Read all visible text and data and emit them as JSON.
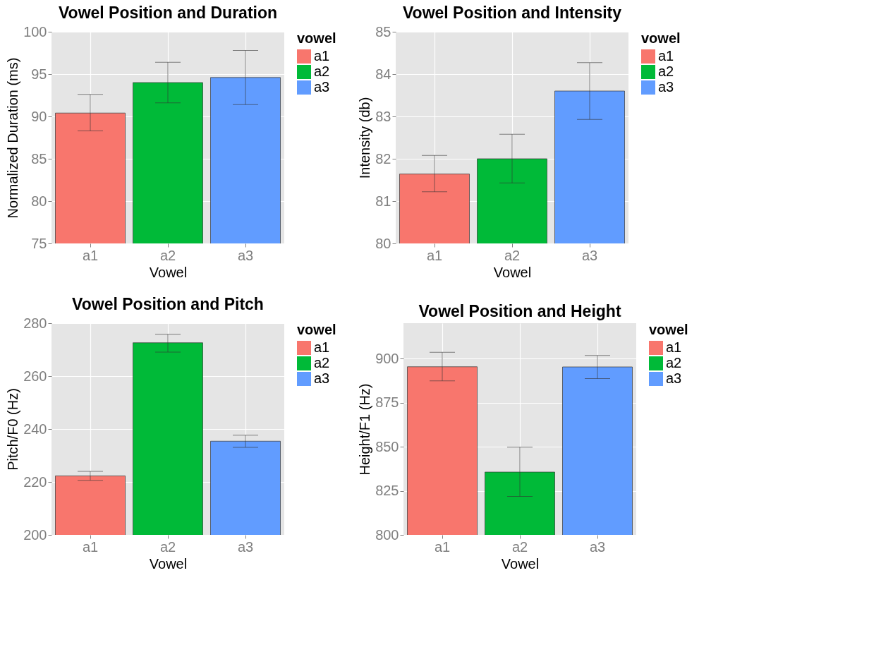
{
  "chart_data": [
    {
      "type": "bar",
      "title": "Vowel Position and Duration",
      "xlabel": "Vowel",
      "ylabel": "Normalized Duration (ms)",
      "categories": [
        "a1",
        "a2",
        "a3"
      ],
      "ylim": [
        75,
        100
      ],
      "yticks": [
        75,
        80,
        85,
        90,
        95,
        100
      ],
      "grid": true,
      "legend": "right",
      "legend_title": "vowel",
      "series": [
        {
          "name": "a1",
          "color": "#f8766d",
          "values": [
            90.4,
            null,
            null
          ],
          "errors": [
            [
              88.3,
              92.6
            ],
            null,
            null
          ]
        },
        {
          "name": "a2",
          "color": "#00ba38",
          "values": [
            null,
            94.0,
            null
          ],
          "errors": [
            null,
            [
              91.6,
              96.4
            ],
            null
          ]
        },
        {
          "name": "a3",
          "color": "#619cff",
          "values": [
            null,
            null,
            94.6
          ],
          "errors": [
            null,
            null,
            [
              91.4,
              97.8
            ]
          ]
        }
      ]
    },
    {
      "type": "bar",
      "title": "Vowel Position and Intensity",
      "xlabel": "Vowel",
      "ylabel": "Intensity (db)",
      "categories": [
        "a1",
        "a2",
        "a3"
      ],
      "ylim": [
        80,
        85
      ],
      "yticks": [
        80,
        81,
        82,
        83,
        84,
        85
      ],
      "grid": true,
      "legend": "right",
      "legend_title": "vowel",
      "series": [
        {
          "name": "a1",
          "color": "#f8766d",
          "values": [
            81.64,
            null,
            null
          ],
          "errors": [
            [
              81.22,
              82.08
            ],
            null,
            null
          ]
        },
        {
          "name": "a2",
          "color": "#00ba38",
          "values": [
            null,
            82.0,
            null
          ],
          "errors": [
            null,
            [
              81.43,
              82.58
            ],
            null
          ]
        },
        {
          "name": "a3",
          "color": "#619cff",
          "values": [
            null,
            null,
            83.6
          ],
          "errors": [
            null,
            null,
            [
              82.93,
              84.27
            ]
          ]
        }
      ]
    },
    {
      "type": "bar",
      "title": "Vowel Position and Pitch",
      "xlabel": "Vowel",
      "ylabel": "Pitch/F0 (Hz)",
      "categories": [
        "a1",
        "a2",
        "a3"
      ],
      "ylim": [
        200,
        280
      ],
      "yticks": [
        200,
        220,
        240,
        260,
        280
      ],
      "grid": true,
      "legend": "right",
      "legend_title": "vowel",
      "series": [
        {
          "name": "a1",
          "color": "#f8766d",
          "values": [
            222.3,
            null,
            null
          ],
          "errors": [
            [
              220.6,
              224.0
            ],
            null,
            null
          ]
        },
        {
          "name": "a2",
          "color": "#00ba38",
          "values": [
            null,
            272.6,
            null
          ],
          "errors": [
            null,
            [
              269.1,
              275.8
            ],
            null
          ]
        },
        {
          "name": "a3",
          "color": "#619cff",
          "values": [
            null,
            null,
            235.4
          ],
          "errors": [
            null,
            null,
            [
              233.1,
              237.7
            ]
          ]
        }
      ]
    },
    {
      "type": "bar",
      "title": "Vowel Position and Height",
      "xlabel": "Vowel",
      "ylabel": "Height/F1 (Hz)",
      "categories": [
        "a1",
        "a2",
        "a3"
      ],
      "ylim": [
        800,
        920
      ],
      "yticks": [
        800,
        825,
        850,
        875,
        900
      ],
      "grid": true,
      "legend": "right",
      "legend_title": "vowel",
      "series": [
        {
          "name": "a1",
          "color": "#f8766d",
          "values": [
            895.3,
            null,
            null
          ],
          "errors": [
            [
              887.3,
              903.5
            ],
            null,
            null
          ]
        },
        {
          "name": "a2",
          "color": "#00ba38",
          "values": [
            null,
            835.6,
            null
          ],
          "errors": [
            null,
            [
              821.8,
              849.7
            ],
            null
          ]
        },
        {
          "name": "a3",
          "color": "#619cff",
          "values": [
            null,
            null,
            895.2
          ],
          "errors": [
            null,
            null,
            [
              888.6,
              901.7
            ]
          ]
        }
      ]
    }
  ]
}
